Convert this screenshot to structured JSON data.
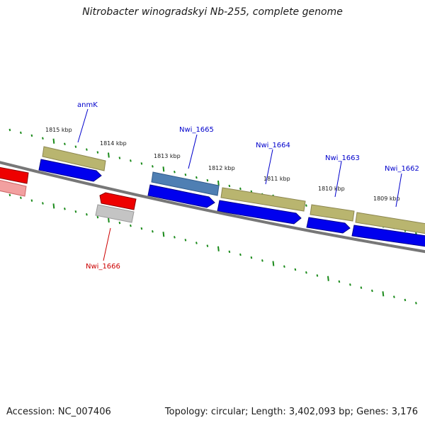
{
  "header": {
    "title": "Nitrobacter winogradskyi Nb-255, complete genome"
  },
  "footer": {
    "accession": "Accession: NC_007406",
    "summary": "Topology: circular; Length: 3,402,093 bp; Genes: 3,176"
  },
  "colors": {
    "backbone": "#777777",
    "forward_cds": "#0000ee",
    "reverse_cds": "#ee0000",
    "gene": "#b9b56f",
    "highlight_gene": "#4f7fb3",
    "reverse_gene_light": "#c4c4c4",
    "tick": "#1a8a1a",
    "forward_label": "#0000cc",
    "reverse_label": "#cc0000"
  },
  "scale": {
    "ticks": [
      "1815 kbp",
      "1814 kbp",
      "1813 kbp",
      "1812 kbp",
      "1811 kbp",
      "1810 kbp",
      "1809 kbp"
    ]
  },
  "genes": [
    {
      "name": "anmK",
      "strand": "forward"
    },
    {
      "name": "Nwi_1665",
      "strand": "forward"
    },
    {
      "name": "Nwi_1664",
      "strand": "forward"
    },
    {
      "name": "Nwi_1663",
      "strand": "forward"
    },
    {
      "name": "Nwi_1662",
      "strand": "forward"
    },
    {
      "name": "Nwi_1666",
      "strand": "reverse"
    }
  ]
}
